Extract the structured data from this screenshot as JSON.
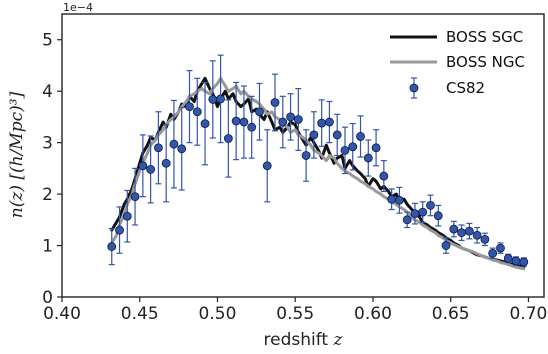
{
  "chart_data": {
    "type": "line",
    "xlabel_text": "redshift",
    "xlabel_var": "z",
    "ylabel": "n(z) [(h/Mpc)³]",
    "y_offset_label": "1e−4",
    "xlim": [
      0.4,
      0.71
    ],
    "ylim": [
      0,
      5.5
    ],
    "x_ticks": [
      "0.40",
      "0.45",
      "0.50",
      "0.55",
      "0.60",
      "0.65",
      "0.70"
    ],
    "y_ticks": [
      "0",
      "1",
      "2",
      "3",
      "4",
      "5"
    ],
    "grid": false,
    "legend_position": "top-right",
    "colors": {
      "sgc": "#111111",
      "ngc": "#999999",
      "cs82": "#3355aa",
      "cs82_edge": "#0a1a4a"
    },
    "series": [
      {
        "name": "BOSS SGC",
        "kind": "line",
        "x": [
          0.432,
          0.435,
          0.437,
          0.44,
          0.442,
          0.445,
          0.447,
          0.45,
          0.452,
          0.455,
          0.457,
          0.46,
          0.462,
          0.465,
          0.467,
          0.47,
          0.472,
          0.475,
          0.477,
          0.48,
          0.482,
          0.485,
          0.487,
          0.49,
          0.492,
          0.495,
          0.497,
          0.5,
          0.502,
          0.505,
          0.507,
          0.51,
          0.512,
          0.515,
          0.517,
          0.52,
          0.522,
          0.525,
          0.527,
          0.53,
          0.532,
          0.535,
          0.537,
          0.54,
          0.542,
          0.545,
          0.547,
          0.55,
          0.552,
          0.555,
          0.557,
          0.56,
          0.562,
          0.565,
          0.567,
          0.57,
          0.572,
          0.575,
          0.577,
          0.58,
          0.582,
          0.585,
          0.587,
          0.59,
          0.592,
          0.595,
          0.597,
          0.6,
          0.602,
          0.605,
          0.607,
          0.61,
          0.612,
          0.615,
          0.617,
          0.62,
          0.622,
          0.625,
          0.627,
          0.63,
          0.632,
          0.635,
          0.637,
          0.64,
          0.642,
          0.645,
          0.647,
          0.65,
          0.652,
          0.655,
          0.657,
          0.66,
          0.662,
          0.665,
          0.667,
          0.67,
          0.672,
          0.675,
          0.677,
          0.68,
          0.682,
          0.685,
          0.687,
          0.69,
          0.692,
          0.695,
          0.697
        ],
        "y": [
          1.3,
          1.45,
          1.55,
          1.8,
          1.9,
          2.1,
          2.3,
          2.6,
          2.8,
          2.95,
          3.1,
          3.05,
          3.2,
          3.4,
          3.3,
          3.55,
          3.45,
          3.6,
          3.75,
          3.7,
          3.9,
          3.8,
          4.0,
          4.15,
          4.25,
          4.05,
          3.95,
          3.7,
          3.85,
          4.0,
          3.85,
          3.95,
          3.8,
          3.7,
          3.75,
          3.85,
          3.6,
          3.65,
          3.55,
          3.45,
          3.6,
          3.4,
          3.25,
          3.3,
          3.2,
          3.3,
          3.4,
          3.35,
          3.2,
          3.05,
          2.95,
          3.1,
          3.0,
          2.85,
          2.7,
          2.95,
          2.8,
          2.6,
          2.7,
          2.75,
          2.5,
          2.65,
          2.55,
          2.45,
          2.4,
          2.3,
          2.15,
          2.3,
          2.25,
          2.1,
          2.15,
          2.05,
          1.95,
          2.0,
          1.85,
          1.9,
          1.8,
          1.7,
          1.65,
          1.55,
          1.45,
          1.4,
          1.35,
          1.3,
          1.25,
          1.2,
          1.15,
          1.1,
          1.05,
          1.0,
          0.95,
          0.92,
          0.9,
          0.85,
          0.82,
          0.8,
          0.78,
          0.75,
          0.73,
          0.72,
          0.7,
          0.68,
          0.66,
          0.64,
          0.62,
          0.6,
          0.58
        ]
      },
      {
        "name": "BOSS NGC",
        "kind": "line",
        "x": [
          0.432,
          0.435,
          0.437,
          0.44,
          0.442,
          0.445,
          0.447,
          0.45,
          0.452,
          0.455,
          0.457,
          0.46,
          0.462,
          0.465,
          0.467,
          0.47,
          0.472,
          0.475,
          0.477,
          0.48,
          0.482,
          0.485,
          0.487,
          0.49,
          0.492,
          0.495,
          0.497,
          0.5,
          0.502,
          0.505,
          0.507,
          0.51,
          0.512,
          0.515,
          0.517,
          0.52,
          0.522,
          0.525,
          0.527,
          0.53,
          0.532,
          0.535,
          0.537,
          0.54,
          0.542,
          0.545,
          0.547,
          0.55,
          0.552,
          0.555,
          0.557,
          0.56,
          0.562,
          0.565,
          0.567,
          0.57,
          0.572,
          0.575,
          0.577,
          0.58,
          0.582,
          0.585,
          0.587,
          0.59,
          0.592,
          0.595,
          0.597,
          0.6,
          0.602,
          0.605,
          0.607,
          0.61,
          0.612,
          0.615,
          0.617,
          0.62,
          0.622,
          0.625,
          0.627,
          0.63,
          0.632,
          0.635,
          0.637,
          0.64,
          0.642,
          0.645,
          0.647,
          0.65,
          0.652,
          0.655,
          0.657,
          0.66,
          0.662,
          0.665,
          0.667,
          0.67,
          0.672,
          0.675,
          0.677,
          0.68,
          0.682,
          0.685,
          0.687,
          0.69,
          0.692,
          0.695,
          0.697
        ],
        "y": [
          1.05,
          1.2,
          1.4,
          1.6,
          1.8,
          2.0,
          2.2,
          2.45,
          2.6,
          2.8,
          2.95,
          3.05,
          3.15,
          3.25,
          3.35,
          3.45,
          3.5,
          3.6,
          3.7,
          3.8,
          3.9,
          3.95,
          4.0,
          4.05,
          4.0,
          3.95,
          4.05,
          4.15,
          4.25,
          4.1,
          4.0,
          4.05,
          4.1,
          3.95,
          4.0,
          3.9,
          3.85,
          3.8,
          3.75,
          3.65,
          3.55,
          3.6,
          3.5,
          3.45,
          3.35,
          3.3,
          3.2,
          3.25,
          3.15,
          3.1,
          3.05,
          2.95,
          2.85,
          2.8,
          2.75,
          2.65,
          2.75,
          2.7,
          2.6,
          2.5,
          2.45,
          2.4,
          2.35,
          2.3,
          2.25,
          2.2,
          2.15,
          2.1,
          2.05,
          2.0,
          1.95,
          1.9,
          1.85,
          1.8,
          1.75,
          1.7,
          1.65,
          1.55,
          1.5,
          1.45,
          1.4,
          1.35,
          1.3,
          1.25,
          1.2,
          1.15,
          1.1,
          1.05,
          1.02,
          0.98,
          0.95,
          0.92,
          0.9,
          0.87,
          0.84,
          0.8,
          0.78,
          0.75,
          0.72,
          0.7,
          0.67,
          0.65,
          0.63,
          0.6,
          0.58,
          0.56,
          0.55
        ]
      },
      {
        "name": "CS82",
        "kind": "errorbar",
        "x": [
          0.432,
          0.437,
          0.442,
          0.447,
          0.452,
          0.457,
          0.462,
          0.467,
          0.472,
          0.477,
          0.482,
          0.487,
          0.492,
          0.497,
          0.502,
          0.507,
          0.512,
          0.517,
          0.522,
          0.527,
          0.532,
          0.537,
          0.542,
          0.547,
          0.552,
          0.557,
          0.562,
          0.567,
          0.572,
          0.577,
          0.582,
          0.587,
          0.592,
          0.597,
          0.602,
          0.607,
          0.612,
          0.617,
          0.622,
          0.627,
          0.632,
          0.637,
          0.642,
          0.647,
          0.652,
          0.657,
          0.662,
          0.667,
          0.672,
          0.677,
          0.682,
          0.687,
          0.692,
          0.697
        ],
        "y": [
          0.98,
          1.3,
          1.57,
          1.95,
          2.55,
          2.48,
          2.9,
          2.6,
          2.97,
          2.88,
          3.7,
          3.6,
          3.37,
          3.84,
          3.85,
          3.08,
          3.42,
          3.4,
          3.3,
          3.6,
          2.55,
          3.78,
          3.4,
          3.5,
          3.45,
          2.75,
          3.15,
          3.38,
          3.4,
          3.15,
          2.85,
          2.92,
          3.12,
          2.7,
          2.9,
          2.35,
          1.9,
          1.88,
          1.5,
          1.62,
          1.65,
          1.78,
          1.58,
          1.0,
          1.32,
          1.25,
          1.28,
          1.2,
          1.12,
          0.85,
          0.95,
          0.75,
          0.7,
          0.68
        ],
        "err": [
          0.35,
          0.45,
          0.5,
          0.55,
          0.6,
          0.65,
          0.7,
          0.75,
          0.85,
          0.8,
          0.7,
          0.65,
          0.8,
          0.75,
          0.85,
          0.75,
          0.75,
          0.7,
          0.6,
          0.55,
          0.7,
          0.55,
          0.5,
          0.45,
          0.6,
          0.5,
          0.45,
          0.45,
          0.4,
          0.4,
          0.45,
          0.45,
          0.4,
          0.35,
          0.35,
          0.3,
          0.2,
          0.25,
          0.15,
          0.2,
          0.2,
          0.2,
          0.2,
          0.15,
          0.15,
          0.15,
          0.15,
          0.15,
          0.12,
          0.1,
          0.1,
          0.08,
          0.08,
          0.08
        ]
      }
    ]
  }
}
